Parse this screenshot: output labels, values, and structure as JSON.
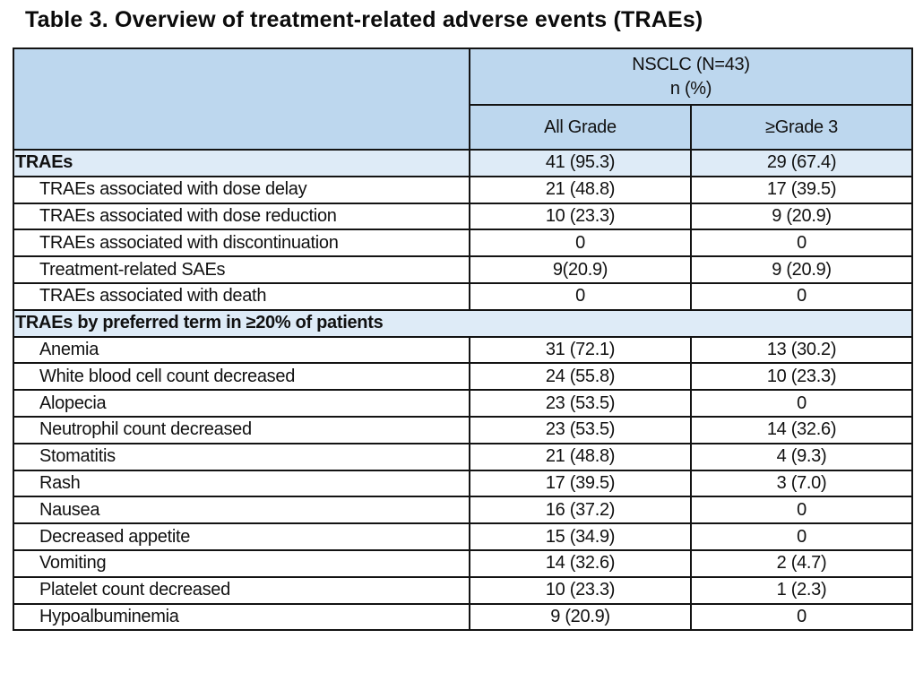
{
  "title": "Table 3. Overview of treatment-related adverse events (TRAEs)",
  "table": {
    "group_header": {
      "line1": "NSCLC (N=43)",
      "line2": "n (%)"
    },
    "columns": {
      "all_grade": "All Grade",
      "grade3": "≥Grade 3"
    },
    "colors": {
      "header_bg": "#BDD7EE",
      "highlight_bg": "#DEEBF7",
      "border": "#131313",
      "text": "#111111"
    },
    "rows": [
      {
        "style": "highlight",
        "label": "TRAEs",
        "all_grade": "41 (95.3)",
        "grade3": "29 (67.4)"
      },
      {
        "style": "normal",
        "label": "TRAEs associated with  dose delay",
        "all_grade": "21 (48.8)",
        "grade3": "17 (39.5)"
      },
      {
        "style": "normal",
        "label": "TRAEs associated with dose reduction",
        "all_grade": "10 (23.3)",
        "grade3": "9 (20.9)"
      },
      {
        "style": "normal",
        "label": "TRAEs associated with discontinuation",
        "all_grade": "0",
        "grade3": "0"
      },
      {
        "style": "normal",
        "label": "Treatment-related SAEs",
        "all_grade": "9(20.9)",
        "grade3": "9 (20.9)"
      },
      {
        "style": "normal",
        "label": "TRAEs associated with death",
        "all_grade": "0",
        "grade3": "0"
      },
      {
        "style": "section",
        "label": "TRAEs by preferred term in ≥20% of patients"
      },
      {
        "style": "normal",
        "label": "Anemia",
        "all_grade": "31 (72.1)",
        "grade3": "13 (30.2)"
      },
      {
        "style": "normal",
        "label": "White blood cell count decreased",
        "all_grade": "24 (55.8)",
        "grade3": "10 (23.3)"
      },
      {
        "style": "normal",
        "label": "Alopecia",
        "all_grade": "23 (53.5)",
        "grade3": "0"
      },
      {
        "style": "normal",
        "label": "Neutrophil count decreased",
        "all_grade": "23 (53.5)",
        "grade3": "14 (32.6)"
      },
      {
        "style": "normal",
        "label": "Stomatitis",
        "all_grade": "21 (48.8)",
        "grade3": "4 (9.3)"
      },
      {
        "style": "normal",
        "label": "Rash",
        "all_grade": "17 (39.5)",
        "grade3": "3 (7.0)"
      },
      {
        "style": "normal",
        "label": "Nausea",
        "all_grade": "16 (37.2)",
        "grade3": "0"
      },
      {
        "style": "normal",
        "label": "Decreased appetite",
        "all_grade": "15 (34.9)",
        "grade3": "0"
      },
      {
        "style": "normal",
        "label": "Vomiting",
        "all_grade": "14 (32.6)",
        "grade3": "2 (4.7)"
      },
      {
        "style": "normal",
        "label": "Platelet count decreased",
        "all_grade": "10 (23.3)",
        "grade3": "1 (2.3)"
      },
      {
        "style": "normal",
        "label": "Hypoalbuminemia",
        "all_grade": "9 (20.9)",
        "grade3": "0"
      }
    ]
  }
}
